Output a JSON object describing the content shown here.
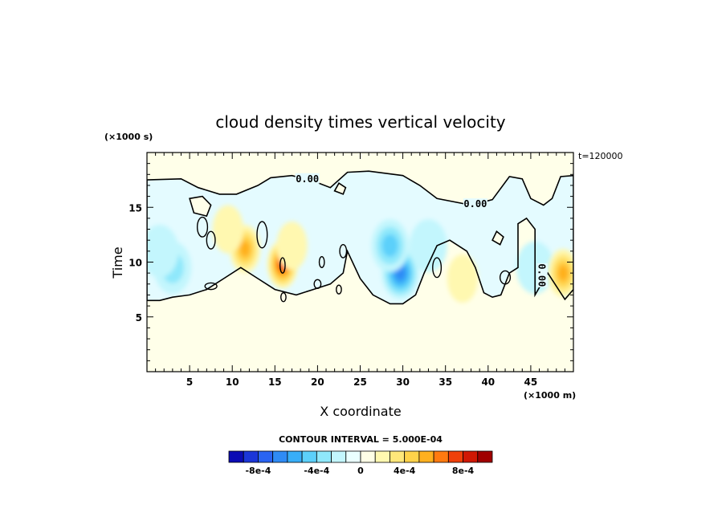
{
  "chart_data": {
    "type": "heatmap",
    "title": "cloud density times vertical velocity",
    "xlabel": "X coordinate",
    "ylabel": "Time",
    "x_unit": "(×1000 m)",
    "y_unit": "(×1000 s)",
    "time_stamp": "t=120000",
    "xlim": [
      0,
      50
    ],
    "ylim": [
      0,
      20
    ],
    "x_ticks": [
      "5",
      "10",
      "15",
      "20",
      "25",
      "30",
      "35",
      "40",
      "45"
    ],
    "y_ticks": [
      "5",
      "10",
      "15"
    ],
    "contour_interval_text": "CONTOUR INTERVAL = 5.000E-04",
    "contour_labels": [
      "0.00",
      "0.00",
      "0.00"
    ],
    "colorbar": {
      "labels": [
        "-8e-4",
        "-4e-4",
        "0",
        "4e-4",
        "8e-4"
      ],
      "colors": [
        "#0b0bb4",
        "#1b36d8",
        "#2a64f2",
        "#2f8bf5",
        "#38aef8",
        "#5cd0fa",
        "#8fe8fb",
        "#c3f6fd",
        "#eaffff",
        "#ffffe6",
        "#fff8b0",
        "#ffe77a",
        "#ffd24a",
        "#ffb01f",
        "#ff7a10",
        "#f0400a",
        "#d01804",
        "#a00000"
      ]
    },
    "background_colors": {
      "cloudy": "#e4fbff",
      "clear": "#ffffe9"
    },
    "features": [
      {
        "kind": "negative",
        "x": 29.7,
        "y": 9.0,
        "value": -0.0005
      },
      {
        "kind": "negative",
        "x": 28.5,
        "y": 11.5,
        "value": -0.0003
      },
      {
        "kind": "negative",
        "x": 3.0,
        "y": 9.5,
        "value": -0.0002
      },
      {
        "kind": "negative",
        "x": 1.5,
        "y": 11.0,
        "value": -0.00015
      },
      {
        "kind": "negative",
        "x": 45.5,
        "y": 9.5,
        "value": -0.00015
      },
      {
        "kind": "negative",
        "x": 33.0,
        "y": 11.5,
        "value": -0.00015
      },
      {
        "kind": "positive",
        "x": 15.9,
        "y": 9.8,
        "value": 0.0006
      },
      {
        "kind": "positive",
        "x": 11.5,
        "y": 11.2,
        "value": 0.00035
      },
      {
        "kind": "positive",
        "x": 48.8,
        "y": 9.0,
        "value": 0.0004
      },
      {
        "kind": "positive",
        "x": 9.5,
        "y": 13.0,
        "value": 0.00015
      },
      {
        "kind": "positive",
        "x": 17.0,
        "y": 11.5,
        "value": 0.00015
      },
      {
        "kind": "positive",
        "x": 37.0,
        "y": 8.5,
        "value": 0.00015
      }
    ],
    "cloud_boundary": [
      [
        0,
        6.5
      ],
      [
        0,
        17.5
      ],
      [
        4,
        17.6
      ],
      [
        6,
        16.8
      ],
      [
        8.5,
        16.2
      ],
      [
        10.5,
        16.2
      ],
      [
        13,
        17.0
      ],
      [
        14.5,
        17.7
      ],
      [
        17,
        17.9
      ],
      [
        19.5,
        17.4
      ],
      [
        21.5,
        16.8
      ],
      [
        23.5,
        18.2
      ],
      [
        26,
        18.3
      ],
      [
        30,
        17.9
      ],
      [
        32,
        17.0
      ],
      [
        34,
        15.8
      ],
      [
        38,
        15.2
      ],
      [
        40.5,
        15.7
      ],
      [
        42.5,
        17.8
      ],
      [
        44,
        17.6
      ],
      [
        45,
        15.8
      ],
      [
        46.5,
        15.2
      ],
      [
        47.5,
        15.8
      ],
      [
        48.5,
        17.8
      ],
      [
        50,
        17.9
      ],
      [
        50,
        7.5
      ],
      [
        49,
        6.6
      ],
      [
        47,
        9.0
      ],
      [
        45.5,
        7.0
      ],
      [
        45.5,
        13.0
      ],
      [
        44.5,
        14.0
      ],
      [
        43.5,
        13.5
      ],
      [
        43.5,
        9.5
      ],
      [
        42.5,
        9.0
      ],
      [
        41.5,
        7.0
      ],
      [
        40.5,
        6.8
      ],
      [
        39.5,
        7.2
      ],
      [
        38.5,
        9.5
      ],
      [
        37.5,
        11.0
      ],
      [
        35.5,
        12.0
      ],
      [
        34.0,
        11.5
      ],
      [
        32.5,
        9.0
      ],
      [
        31.5,
        7.0
      ],
      [
        30.0,
        6.2
      ],
      [
        28.5,
        6.2
      ],
      [
        26.5,
        7.0
      ],
      [
        25.0,
        8.5
      ],
      [
        23.5,
        11.0
      ],
      [
        23.0,
        9.0
      ],
      [
        21.5,
        8.0
      ],
      [
        19.5,
        7.5
      ],
      [
        17.5,
        7.0
      ],
      [
        15.0,
        7.5
      ],
      [
        13.0,
        8.5
      ],
      [
        11.0,
        9.5
      ],
      [
        9.0,
        8.5
      ],
      [
        7.0,
        7.5
      ],
      [
        5.0,
        7.0
      ],
      [
        3.0,
        6.8
      ],
      [
        1.5,
        6.5
      ]
    ],
    "clear_holes": [
      [
        [
          5.5,
          14.5
        ],
        [
          5.0,
          15.8
        ],
        [
          6.5,
          16.0
        ],
        [
          7.5,
          15.2
        ],
        [
          7.0,
          14.2
        ]
      ],
      [
        [
          22.0,
          16.5
        ],
        [
          22.5,
          17.2
        ],
        [
          23.3,
          16.8
        ],
        [
          23.0,
          16.2
        ]
      ],
      [
        [
          40.5,
          12.0
        ],
        [
          41.0,
          12.8
        ],
        [
          41.8,
          12.3
        ],
        [
          41.4,
          11.6
        ]
      ]
    ],
    "contour_loops": [
      {
        "cx": 6.5,
        "cy": 13.2,
        "rx": 0.6,
        "ry": 0.9
      },
      {
        "cx": 7.5,
        "cy": 12.0,
        "rx": 0.5,
        "ry": 0.8
      },
      {
        "cx": 13.5,
        "cy": 12.5,
        "rx": 0.6,
        "ry": 1.2
      },
      {
        "cx": 15.9,
        "cy": 9.7,
        "rx": 0.3,
        "ry": 0.7
      },
      {
        "cx": 16.0,
        "cy": 6.8,
        "rx": 0.3,
        "ry": 0.4
      },
      {
        "cx": 20.5,
        "cy": 10.0,
        "rx": 0.3,
        "ry": 0.5
      },
      {
        "cx": 20.0,
        "cy": 8.0,
        "rx": 0.4,
        "ry": 0.4
      },
      {
        "cx": 23.0,
        "cy": 11.0,
        "rx": 0.4,
        "ry": 0.6
      },
      {
        "cx": 22.5,
        "cy": 7.5,
        "rx": 0.3,
        "ry": 0.4
      },
      {
        "cx": 34.0,
        "cy": 9.5,
        "rx": 0.5,
        "ry": 0.9
      },
      {
        "cx": 42.0,
        "cy": 8.6,
        "rx": 0.6,
        "ry": 0.6
      },
      {
        "cx": 7.5,
        "cy": 7.8,
        "rx": 0.7,
        "ry": 0.3
      }
    ]
  }
}
